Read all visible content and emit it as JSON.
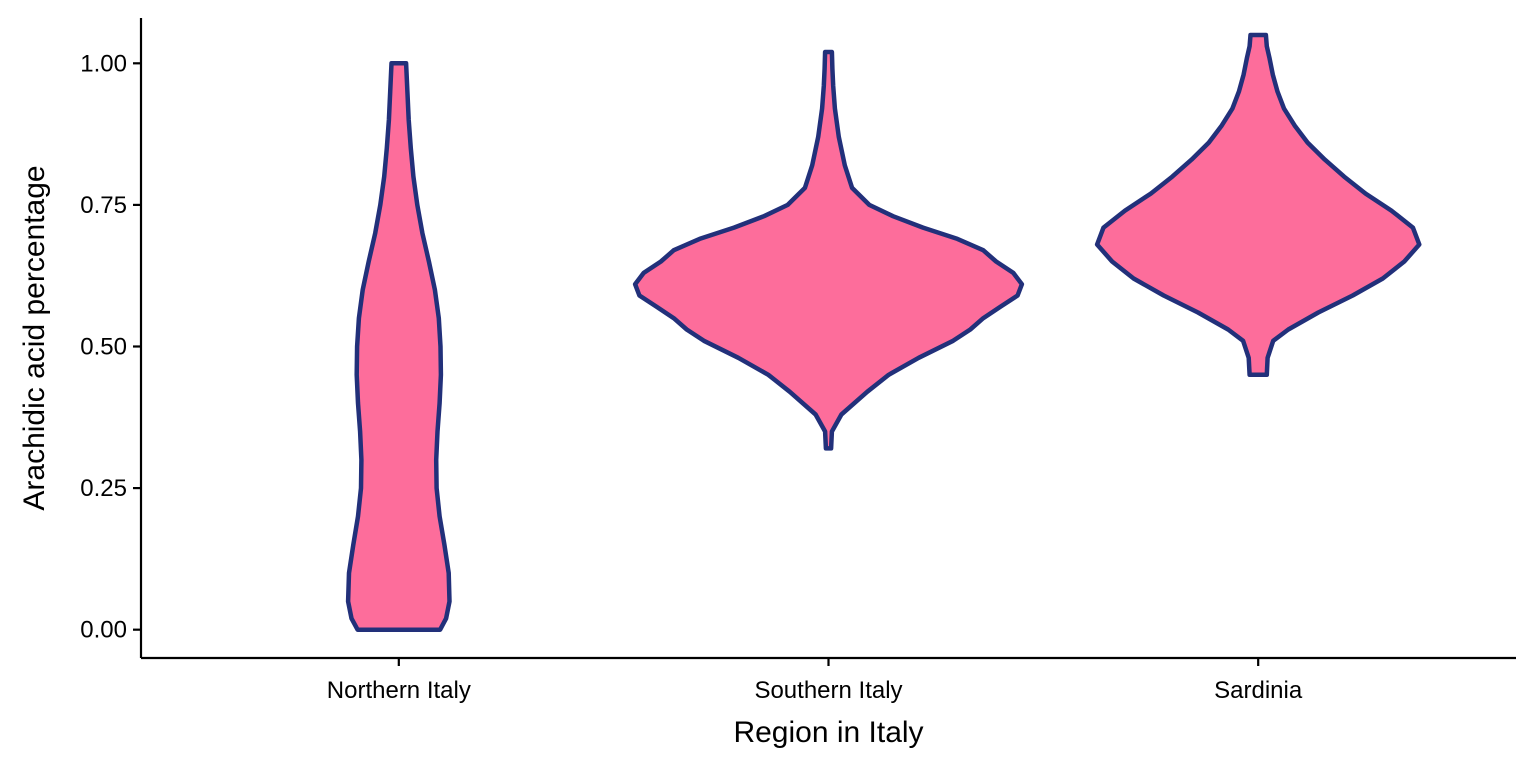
{
  "chart_data": {
    "type": "violin",
    "title": "",
    "xlabel": "Region in Italy",
    "ylabel": "Arachidic acid percentage",
    "categories": [
      "Northern Italy",
      "Southern Italy",
      "Sardinia"
    ],
    "ylim": [
      -0.05,
      1.08
    ],
    "yticks": [
      0.0,
      0.25,
      0.5,
      0.75,
      1.0
    ],
    "ytick_labels": [
      "0.00",
      "0.25",
      "0.50",
      "0.75",
      "1.00"
    ],
    "grid": false,
    "legend": "none",
    "colors": {
      "fill": "#fd6d9b",
      "outline": "#22307a",
      "axis": "#000000"
    },
    "series": [
      {
        "category": "Northern Italy",
        "min": 0.0,
        "max": 1.0,
        "max_half_width": 0.125,
        "profile": [
          [
            0.0,
            0.096
          ],
          [
            0.02,
            0.11
          ],
          [
            0.05,
            0.118
          ],
          [
            0.1,
            0.116
          ],
          [
            0.15,
            0.106
          ],
          [
            0.2,
            0.095
          ],
          [
            0.25,
            0.088
          ],
          [
            0.3,
            0.087
          ],
          [
            0.35,
            0.09
          ],
          [
            0.4,
            0.095
          ],
          [
            0.45,
            0.098
          ],
          [
            0.5,
            0.097
          ],
          [
            0.55,
            0.093
          ],
          [
            0.6,
            0.084
          ],
          [
            0.65,
            0.07
          ],
          [
            0.7,
            0.055
          ],
          [
            0.75,
            0.043
          ],
          [
            0.8,
            0.034
          ],
          [
            0.85,
            0.028
          ],
          [
            0.9,
            0.023
          ],
          [
            0.95,
            0.02
          ],
          [
            1.0,
            0.017
          ]
        ]
      },
      {
        "category": "Southern Italy",
        "min": 0.32,
        "max": 1.02,
        "max_half_width": 0.45,
        "profile": [
          [
            0.32,
            0.006
          ],
          [
            0.35,
            0.008
          ],
          [
            0.38,
            0.03
          ],
          [
            0.42,
            0.09
          ],
          [
            0.45,
            0.14
          ],
          [
            0.48,
            0.21
          ],
          [
            0.51,
            0.29
          ],
          [
            0.53,
            0.33
          ],
          [
            0.55,
            0.36
          ],
          [
            0.57,
            0.4
          ],
          [
            0.59,
            0.44
          ],
          [
            0.61,
            0.45
          ],
          [
            0.63,
            0.43
          ],
          [
            0.65,
            0.39
          ],
          [
            0.67,
            0.36
          ],
          [
            0.69,
            0.3
          ],
          [
            0.71,
            0.22
          ],
          [
            0.73,
            0.15
          ],
          [
            0.75,
            0.095
          ],
          [
            0.78,
            0.055
          ],
          [
            0.82,
            0.038
          ],
          [
            0.87,
            0.024
          ],
          [
            0.92,
            0.015
          ],
          [
            0.96,
            0.011
          ],
          [
            0.99,
            0.009
          ],
          [
            1.02,
            0.008
          ]
        ]
      },
      {
        "category": "Sardinia",
        "min": 0.45,
        "max": 1.05,
        "max_half_width": 0.375,
        "profile": [
          [
            0.45,
            0.02
          ],
          [
            0.48,
            0.022
          ],
          [
            0.51,
            0.035
          ],
          [
            0.53,
            0.07
          ],
          [
            0.56,
            0.14
          ],
          [
            0.59,
            0.22
          ],
          [
            0.62,
            0.29
          ],
          [
            0.65,
            0.34
          ],
          [
            0.68,
            0.375
          ],
          [
            0.71,
            0.36
          ],
          [
            0.74,
            0.31
          ],
          [
            0.77,
            0.25
          ],
          [
            0.8,
            0.2
          ],
          [
            0.83,
            0.155
          ],
          [
            0.86,
            0.115
          ],
          [
            0.89,
            0.085
          ],
          [
            0.92,
            0.06
          ],
          [
            0.95,
            0.045
          ],
          [
            0.98,
            0.034
          ],
          [
            1.01,
            0.026
          ],
          [
            1.03,
            0.02
          ],
          [
            1.05,
            0.018
          ]
        ]
      }
    ]
  }
}
